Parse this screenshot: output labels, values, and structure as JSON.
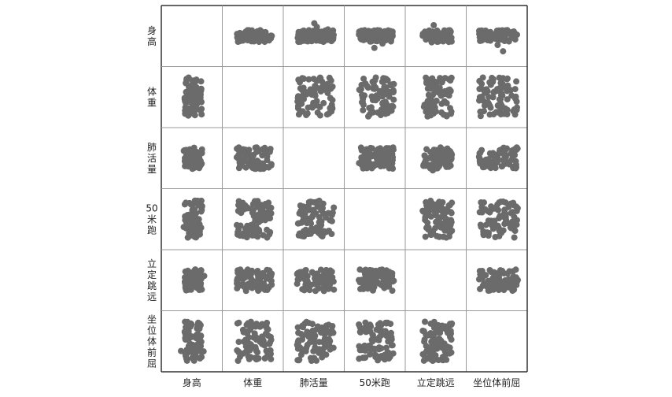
{
  "chart_data": {
    "type": "scatter",
    "variables": [
      "身高",
      "体重",
      "肺活量",
      "50米跑",
      "立定跳远",
      "坐位体前屈"
    ],
    "row_labels_vertical": [
      [
        "身",
        "高"
      ],
      [
        "体",
        "重"
      ],
      [
        "肺",
        "活",
        "量"
      ],
      [
        "50",
        "米",
        "跑"
      ],
      [
        "立",
        "定",
        "跳",
        "远"
      ],
      [
        "坐",
        "位",
        "体",
        "前",
        "屈"
      ]
    ],
    "diagonal": "empty",
    "point_color": "#6b6b6b",
    "grid": true,
    "title": "",
    "xlabel": "",
    "ylabel": ""
  }
}
